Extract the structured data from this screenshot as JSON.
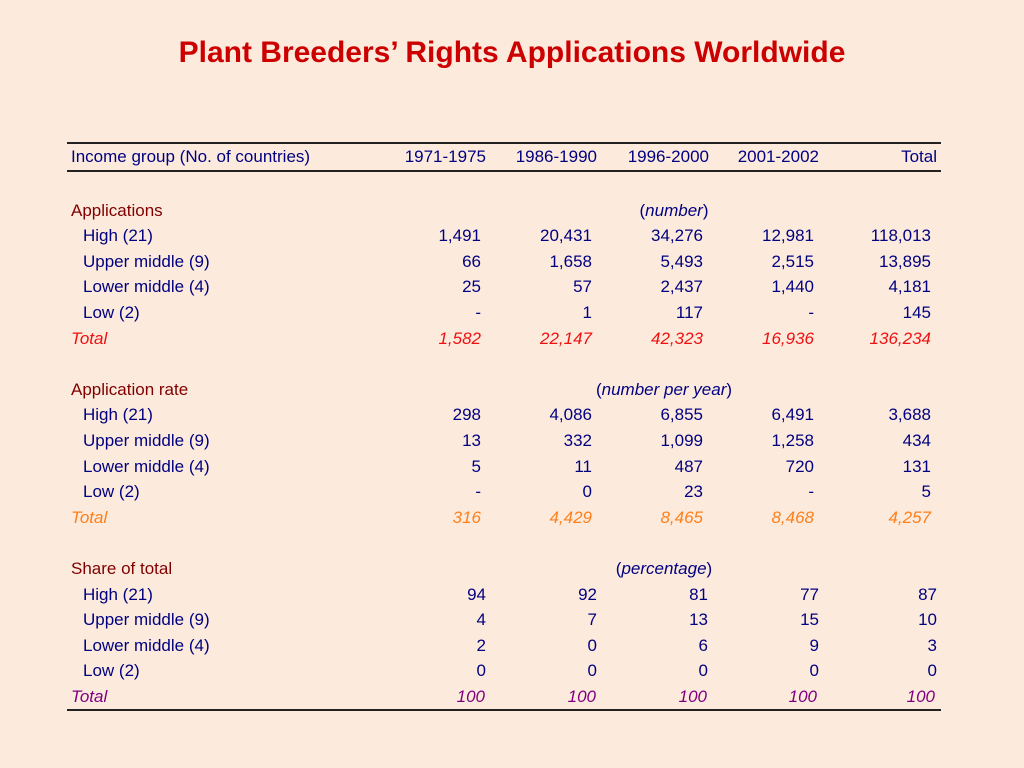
{
  "title": "Plant Breeders’ Rights Applications Worldwide",
  "columns": [
    "Income group (No. of countries)",
    "1971-1975",
    "1986-1990",
    "1996-2000",
    "2001-2002",
    "Total"
  ],
  "sections": [
    {
      "label": "Applications",
      "unit_open": "(",
      "unit_text": "number",
      "unit_close": ")",
      "rows": [
        {
          "label": "High (21)",
          "values": [
            "1,491",
            "20,431",
            "34,276",
            "12,981",
            "118,013"
          ]
        },
        {
          "label": "Upper middle (9)",
          "values": [
            "66",
            "1,658",
            "5,493",
            "2,515",
            "13,895"
          ]
        },
        {
          "label": "Lower middle (4)",
          "values": [
            "25",
            "57",
            "2,437",
            "1,440",
            "4,181"
          ]
        },
        {
          "label": "Low (2)",
          "values": [
            "-",
            "1",
            "117",
            "-",
            "145"
          ]
        }
      ],
      "total": {
        "label": "Total",
        "values": [
          "1,582",
          "22,147",
          "42,323",
          "16,936",
          "136,234"
        ]
      }
    },
    {
      "label": "Application rate",
      "unit_open": "(",
      "unit_text": "number per year",
      "unit_close": ")",
      "rows": [
        {
          "label": "High (21)",
          "values": [
            "298",
            "4,086",
            "6,855",
            "6,491",
            "3,688"
          ]
        },
        {
          "label": "Upper middle (9)",
          "values": [
            "13",
            "332",
            "1,099",
            "1,258",
            "434"
          ]
        },
        {
          "label": "Lower middle (4)",
          "values": [
            "5",
            "11",
            "487",
            "720",
            "131"
          ]
        },
        {
          "label": "Low (2)",
          "values": [
            "-",
            "0",
            "23",
            "-",
            "5"
          ]
        }
      ],
      "total": {
        "label": "Total",
        "values": [
          "316",
          "4,429",
          "8,465",
          "8,468",
          "4,257"
        ]
      }
    },
    {
      "label": "Share of total",
      "unit_open": "(",
      "unit_text": "percentage",
      "unit_close": ")",
      "rows": [
        {
          "label": "High (21)",
          "values": [
            "94",
            "92",
            "81",
            "77",
            "87"
          ]
        },
        {
          "label": "Upper middle (9)",
          "values": [
            "4",
            "7",
            "13",
            "15",
            "10"
          ]
        },
        {
          "label": "Lower middle (4)",
          "values": [
            "2",
            "0",
            "6",
            "9",
            "3"
          ]
        },
        {
          "label": "Low (2)",
          "values": [
            "0",
            "0",
            "0",
            "0",
            "0"
          ]
        }
      ],
      "total": {
        "label": "Total",
        "values": [
          "100",
          "100",
          "100",
          "100",
          "100"
        ]
      }
    }
  ],
  "colors": {
    "background": "#fcebdd",
    "title": "#cc0000",
    "body_text": "#000080",
    "section_label": "#800000",
    "total_applications": "#ee1111",
    "total_rate": "#ff7f1a",
    "total_share": "#800080"
  }
}
